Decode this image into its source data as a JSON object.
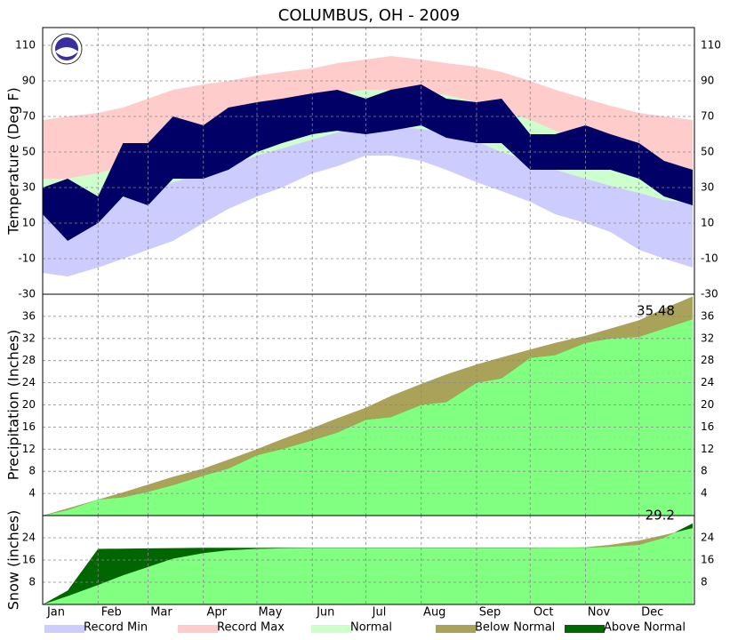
{
  "title": "COLUMBUS, OH - 2009",
  "legend": [
    {
      "name": "Record Min",
      "color": "#ccccff"
    },
    {
      "name": "Record Max",
      "color": "#ffcccc"
    },
    {
      "name": "Normal",
      "color": "#ccffcc"
    },
    {
      "name": "Below Normal",
      "color": "#aaa258"
    },
    {
      "name": "Above Normal",
      "color": "#006600"
    }
  ],
  "chart_data": [
    {
      "type": "band",
      "ylabel": "Temperature (Deg F)",
      "x": [
        1,
        15,
        32,
        46,
        60,
        74,
        91,
        105,
        121,
        135,
        152,
        166,
        182,
        196,
        213,
        227,
        244,
        258,
        274,
        288,
        305,
        319,
        335,
        349,
        365
      ],
      "xlim": [
        1,
        366
      ],
      "ylim": [
        -30,
        120
      ],
      "yticks": [
        -30,
        -10,
        10,
        30,
        50,
        70,
        90,
        110
      ],
      "record_max": [
        68,
        70,
        72,
        75,
        80,
        85,
        88,
        90,
        93,
        95,
        97,
        100,
        102,
        104,
        102,
        100,
        98,
        95,
        90,
        85,
        80,
        76,
        72,
        70,
        68
      ],
      "normal_high": [
        35,
        35,
        38,
        42,
        47,
        53,
        59,
        64,
        70,
        75,
        79,
        83,
        85,
        85,
        84,
        82,
        78,
        73,
        68,
        62,
        55,
        49,
        43,
        38,
        36
      ],
      "normal_low": [
        20,
        19,
        21,
        24,
        28,
        33,
        38,
        42,
        48,
        52,
        57,
        61,
        64,
        64,
        63,
        61,
        56,
        50,
        45,
        40,
        35,
        31,
        27,
        23,
        21
      ],
      "record_min": [
        -18,
        -20,
        -15,
        -10,
        -5,
        0,
        10,
        18,
        25,
        30,
        38,
        42,
        48,
        48,
        45,
        40,
        33,
        28,
        22,
        15,
        10,
        5,
        -5,
        -10,
        -15
      ],
      "observed_high": [
        30,
        35,
        25,
        55,
        55,
        70,
        65,
        75,
        78,
        80,
        83,
        85,
        80,
        85,
        88,
        80,
        78,
        80,
        60,
        60,
        65,
        60,
        55,
        45,
        40
      ],
      "observed_low": [
        15,
        0,
        10,
        25,
        20,
        35,
        35,
        40,
        50,
        55,
        60,
        62,
        60,
        62,
        65,
        58,
        55,
        55,
        40,
        40,
        40,
        40,
        35,
        25,
        20
      ],
      "observed_color": "#000066"
    },
    {
      "type": "cumulative",
      "ylabel": "Precipitation (Inches)",
      "x": [
        1,
        15,
        32,
        46,
        60,
        74,
        91,
        105,
        121,
        135,
        152,
        166,
        182,
        196,
        213,
        227,
        244,
        258,
        274,
        288,
        305,
        319,
        335,
        349,
        365
      ],
      "xlim": [
        1,
        366
      ],
      "ylim": [
        0,
        40
      ],
      "yticks": [
        4,
        8,
        12,
        16,
        20,
        24,
        28,
        32,
        36
      ],
      "normal": [
        0,
        1.3,
        2.9,
        4.2,
        5.6,
        7.0,
        8.5,
        10.1,
        12.0,
        13.8,
        15.8,
        17.6,
        19.5,
        21.6,
        23.8,
        25.5,
        27.3,
        28.6,
        30.0,
        31.2,
        32.5,
        33.8,
        35.3,
        37.4,
        39.6
      ],
      "actual": [
        0,
        1.0,
        2.9,
        3.3,
        4.3,
        5.5,
        7.2,
        8.5,
        10.9,
        12.0,
        13.6,
        15.0,
        17.3,
        17.8,
        20.0,
        20.5,
        24.0,
        24.8,
        28.5,
        29.0,
        31.2,
        32.0,
        32.3,
        33.8,
        35.48
      ],
      "actual_color": "#80ff80"
    },
    {
      "type": "cumulative",
      "ylabel": "Snow (inches)",
      "x": [
        1,
        15,
        32,
        46,
        60,
        74,
        91,
        105,
        121,
        135,
        152,
        166,
        182,
        196,
        213,
        227,
        244,
        258,
        274,
        288,
        305,
        319,
        335,
        349,
        365
      ],
      "xlim": [
        1,
        366
      ],
      "ylim": [
        0,
        32
      ],
      "yticks": [
        8,
        16,
        24
      ],
      "normal": [
        0,
        3,
        7,
        10.5,
        13.5,
        16.5,
        18.5,
        19.5,
        20,
        20.2,
        20.3,
        20.3,
        20.3,
        20.3,
        20.3,
        20.3,
        20.3,
        20.3,
        20.3,
        20.4,
        20.6,
        21.5,
        23,
        25,
        27.5
      ],
      "actual": [
        0,
        5,
        20,
        20.1,
        20.2,
        20.3,
        20.4,
        20.4,
        20.4,
        20.4,
        20.4,
        20.4,
        20.4,
        20.4,
        20.4,
        20.4,
        20.4,
        20.4,
        20.4,
        20.4,
        20.4,
        20.8,
        21.5,
        24,
        29.2
      ],
      "actual_color": "#80ff80",
      "xticks": [
        {
          "value": 1,
          "label": "Jan"
        },
        {
          "value": 32,
          "label": "Feb"
        },
        {
          "value": 60,
          "label": "Mar"
        },
        {
          "value": 91,
          "label": "Apr"
        },
        {
          "value": 121,
          "label": "May"
        },
        {
          "value": 152,
          "label": "Jun"
        },
        {
          "value": 182,
          "label": "Jul"
        },
        {
          "value": 213,
          "label": "Aug"
        },
        {
          "value": 244,
          "label": "Sep"
        },
        {
          "value": 274,
          "label": "Oct"
        },
        {
          "value": 305,
          "label": "Nov"
        },
        {
          "value": 335,
          "label": "Dec"
        }
      ]
    }
  ]
}
